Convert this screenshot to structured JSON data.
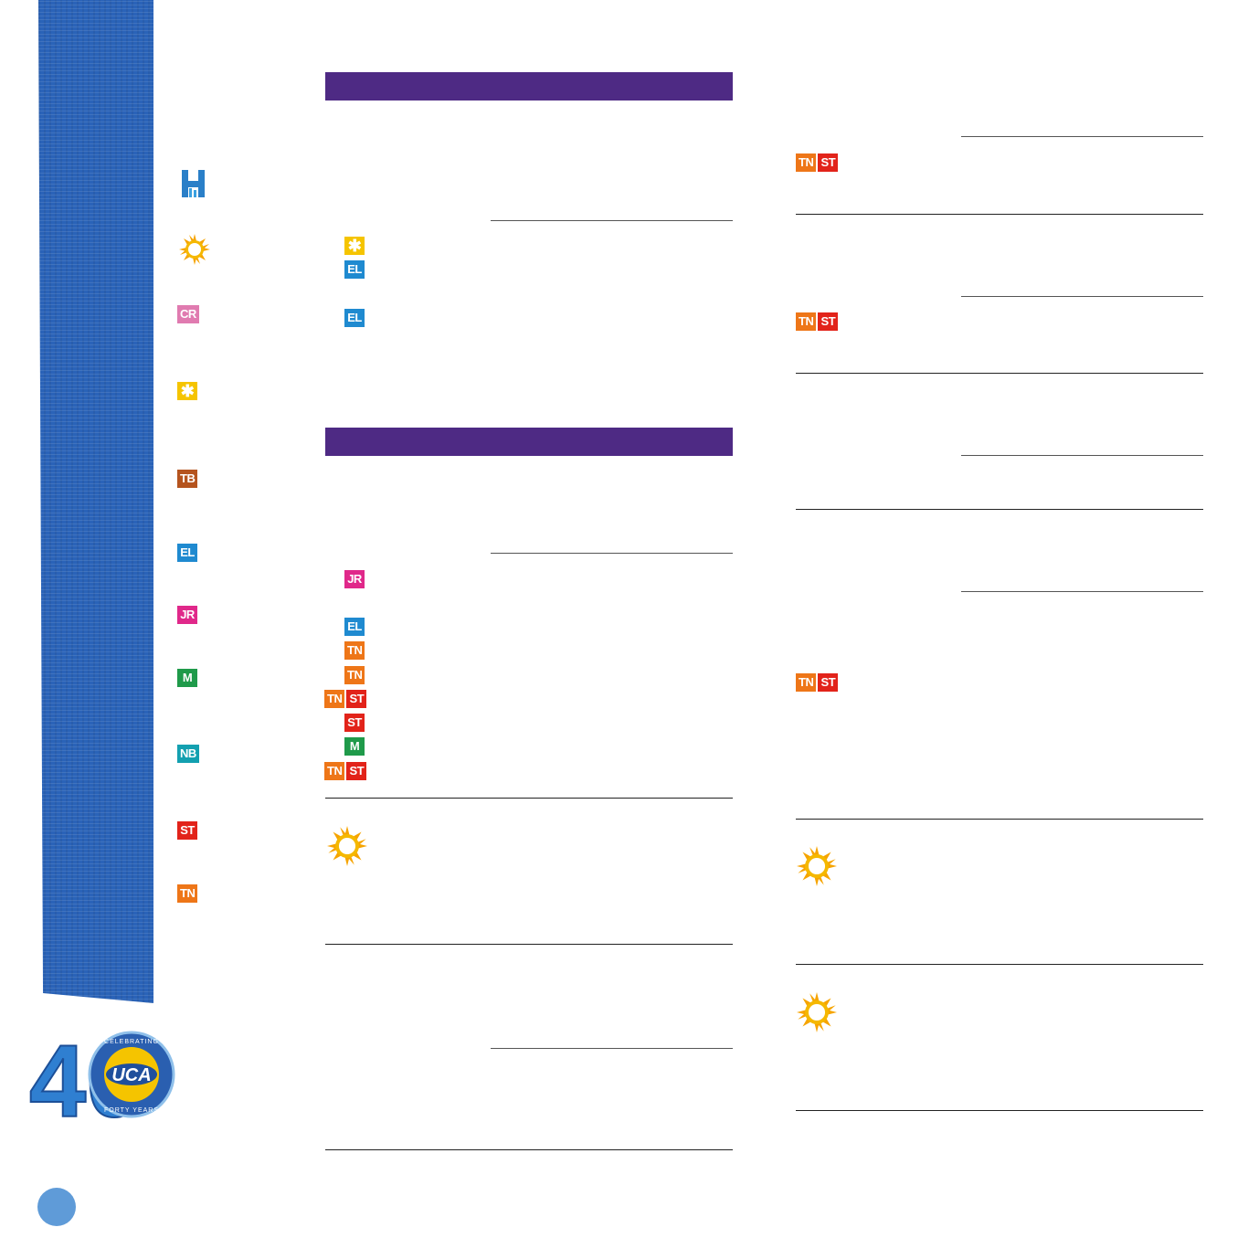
{
  "legend": {
    "items": [
      {
        "key": "H",
        "icon": "h-icon"
      },
      {
        "key": "sun",
        "icon": "sun-icon"
      },
      {
        "key": "CR",
        "label": "CR"
      },
      {
        "key": "star",
        "label": "✱"
      },
      {
        "key": "TB",
        "label": "TB"
      },
      {
        "key": "EL",
        "label": "EL"
      },
      {
        "key": "JR",
        "label": "JR"
      },
      {
        "key": "M",
        "label": "M"
      },
      {
        "key": "NB",
        "label": "NB"
      },
      {
        "key": "ST",
        "label": "ST"
      },
      {
        "key": "TN",
        "label": "TN"
      }
    ]
  },
  "badges": {
    "star": "✱",
    "EL": "EL",
    "JR": "JR",
    "TN": "TN",
    "ST": "ST",
    "M": "M"
  },
  "logo": {
    "number": "40",
    "brand": "UCA",
    "arc_top": "CELEBRATING",
    "arc_bottom": "FORTY YEARS"
  },
  "colors": {
    "section_bar": "#4e2a84",
    "ribbon": "#2a63b8",
    "page_dot": "#5f9bd8"
  }
}
